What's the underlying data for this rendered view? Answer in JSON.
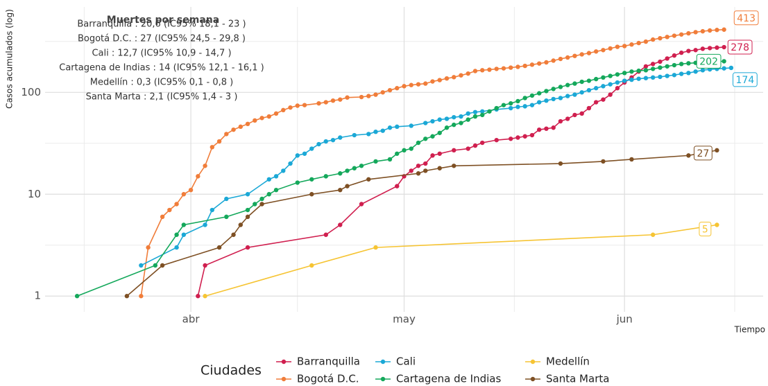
{
  "chart_data": {
    "type": "line",
    "log_scale": true,
    "grid": true,
    "ylabel": "Casos acumulados (log)",
    "xlabel": "Tiempo",
    "annotation_title": "Muertes por semana",
    "annotations": [
      "Barranquilla : 20,6 (IC95% 18,1 - 23 )",
      "Bogotá D.C. : 27 (IC95% 24,5 - 29,8 )",
      "Cali : 12,7 (IC95% 10,9 - 14,7 )",
      "Cartagena de Indias : 14 (IC95% 12,1 - 16,1 )",
      "Medellín : 0,3 (IC95% 0,1 - 0,8 )",
      "Santa Marta : 2,1 (IC95% 1,4 - 3 )"
    ],
    "legend_title": "Ciudades",
    "legend": "bottom",
    "ylim": [
      0.7,
      690
    ],
    "yticks": [
      1,
      10,
      100
    ],
    "xlim": [
      71.5,
      172.5
    ],
    "xticks": [
      {
        "value": 92,
        "label": "abr"
      },
      {
        "value": 122,
        "label": "may"
      },
      {
        "value": 153,
        "label": "jun"
      }
    ],
    "series": [
      {
        "name": "Barranquilla",
        "color": "#d01f4f",
        "x": [
          93,
          94,
          100,
          111,
          113,
          116,
          121,
          122,
          123,
          124,
          125,
          126,
          127,
          129,
          131,
          132,
          133,
          135,
          137,
          138,
          139,
          140,
          141,
          142,
          143,
          144,
          145,
          146,
          147,
          148,
          149,
          150,
          151,
          152,
          153,
          154,
          155,
          156,
          157,
          158,
          159,
          160,
          161,
          162,
          163,
          164,
          165,
          166,
          167
        ],
        "values": [
          1,
          2,
          3,
          4,
          5,
          8,
          12,
          15,
          17,
          19,
          20,
          24,
          25,
          27,
          28,
          30,
          32,
          34,
          35,
          36,
          37,
          38,
          43,
          44,
          45,
          52,
          55,
          60,
          62,
          70,
          80,
          85,
          95,
          110,
          125,
          140,
          160,
          180,
          190,
          200,
          215,
          230,
          245,
          255,
          260,
          268,
          272,
          275,
          278
        ]
      },
      {
        "name": "Bogotá D.C.",
        "color": "#f07d3a",
        "x": [
          85,
          86,
          88,
          89,
          90,
          91,
          92,
          93,
          94,
          95,
          96,
          97,
          98,
          99,
          100,
          101,
          102,
          103,
          104,
          105,
          106,
          107,
          108,
          110,
          111,
          112,
          113,
          114,
          116,
          117,
          118,
          119,
          120,
          121,
          122,
          123,
          124,
          125,
          126,
          127,
          128,
          129,
          130,
          131,
          132,
          133,
          134,
          135,
          136,
          137,
          138,
          139,
          140,
          141,
          142,
          143,
          144,
          145,
          146,
          147,
          148,
          149,
          150,
          151,
          152,
          153,
          154,
          155,
          156,
          157,
          158,
          159,
          160,
          161,
          162,
          163,
          164,
          165,
          166,
          167
        ],
        "values": [
          1,
          3,
          6,
          7,
          8,
          10,
          11,
          15,
          19,
          29,
          33,
          39,
          43,
          46,
          49,
          53,
          56,
          58,
          62,
          67,
          71,
          74,
          75,
          78,
          80,
          83,
          85,
          89,
          90,
          92,
          95,
          100,
          105,
          110,
          115,
          118,
          120,
          122,
          128,
          132,
          137,
          141,
          147,
          153,
          162,
          165,
          167,
          170,
          172,
          175,
          178,
          182,
          187,
          192,
          197,
          205,
          213,
          220,
          228,
          236,
          243,
          252,
          260,
          270,
          280,
          285,
          295,
          305,
          315,
          330,
          340,
          350,
          360,
          370,
          380,
          390,
          398,
          405,
          410,
          413
        ]
      },
      {
        "name": "Cali",
        "color": "#1ba8d6",
        "x": [
          85,
          90,
          91,
          94,
          95,
          97,
          100,
          103,
          104,
          105,
          106,
          107,
          108,
          109,
          110,
          111,
          112,
          113,
          115,
          117,
          118,
          119,
          120,
          121,
          123,
          125,
          126,
          127,
          128,
          129,
          130,
          131,
          132,
          133,
          135,
          137,
          138,
          139,
          140,
          141,
          142,
          143,
          144,
          145,
          146,
          147,
          148,
          149,
          150,
          151,
          152,
          153,
          154,
          155,
          156,
          157,
          158,
          159,
          160,
          161,
          162,
          163,
          164,
          165,
          166,
          167,
          168
        ],
        "values": [
          2,
          3,
          4,
          5,
          7,
          9,
          10,
          14,
          15,
          17,
          20,
          24,
          25,
          28,
          31,
          33,
          34,
          36,
          38,
          39,
          41,
          42,
          45,
          46,
          47,
          50,
          52,
          54,
          55,
          57,
          58,
          62,
          64,
          65,
          68,
          70,
          72,
          73,
          75,
          80,
          83,
          86,
          88,
          92,
          95,
          100,
          105,
          110,
          115,
          120,
          125,
          130,
          133,
          136,
          138,
          140,
          142,
          145,
          148,
          152,
          155,
          160,
          165,
          168,
          170,
          172,
          174
        ]
      },
      {
        "name": "Cartagena de Indias",
        "color": "#14a85b",
        "x": [
          76,
          87,
          90,
          91,
          97,
          100,
          101,
          102,
          103,
          104,
          107,
          109,
          111,
          113,
          114,
          115,
          116,
          118,
          120,
          121,
          122,
          123,
          124,
          125,
          126,
          127,
          128,
          129,
          130,
          131,
          132,
          133,
          134,
          135,
          136,
          137,
          138,
          139,
          140,
          141,
          142,
          143,
          144,
          145,
          146,
          147,
          148,
          149,
          150,
          151,
          152,
          153,
          154,
          155,
          156,
          157,
          158,
          159,
          160,
          161,
          162,
          163,
          164,
          165,
          167
        ],
        "values": [
          1,
          2,
          4,
          5,
          6,
          7,
          8,
          9,
          10,
          11,
          13,
          14,
          15,
          16,
          17,
          18,
          19,
          21,
          22,
          25,
          27,
          28,
          32,
          35,
          37,
          40,
          45,
          48,
          50,
          54,
          58,
          60,
          65,
          70,
          75,
          78,
          82,
          88,
          93,
          98,
          103,
          108,
          113,
          118,
          122,
          127,
          130,
          135,
          140,
          145,
          150,
          155,
          160,
          163,
          165,
          170,
          175,
          180,
          185,
          190,
          193,
          195,
          197,
          200,
          202
        ]
      },
      {
        "name": "Medellín",
        "color": "#f6c433",
        "x": [
          94,
          109,
          118,
          157,
          166
        ],
        "values": [
          1,
          2,
          3,
          4,
          5
        ]
      },
      {
        "name": "Santa Marta",
        "color": "#7e5024",
        "x": [
          83,
          88,
          96,
          98,
          99,
          100,
          102,
          109,
          113,
          114,
          117,
          124,
          125,
          127,
          129,
          144,
          150,
          154,
          162,
          166
        ],
        "values": [
          1,
          2,
          3,
          4,
          5,
          6,
          8,
          10,
          11,
          12,
          14,
          16,
          17,
          18,
          19,
          20,
          21,
          22,
          24,
          27
        ]
      }
    ]
  }
}
